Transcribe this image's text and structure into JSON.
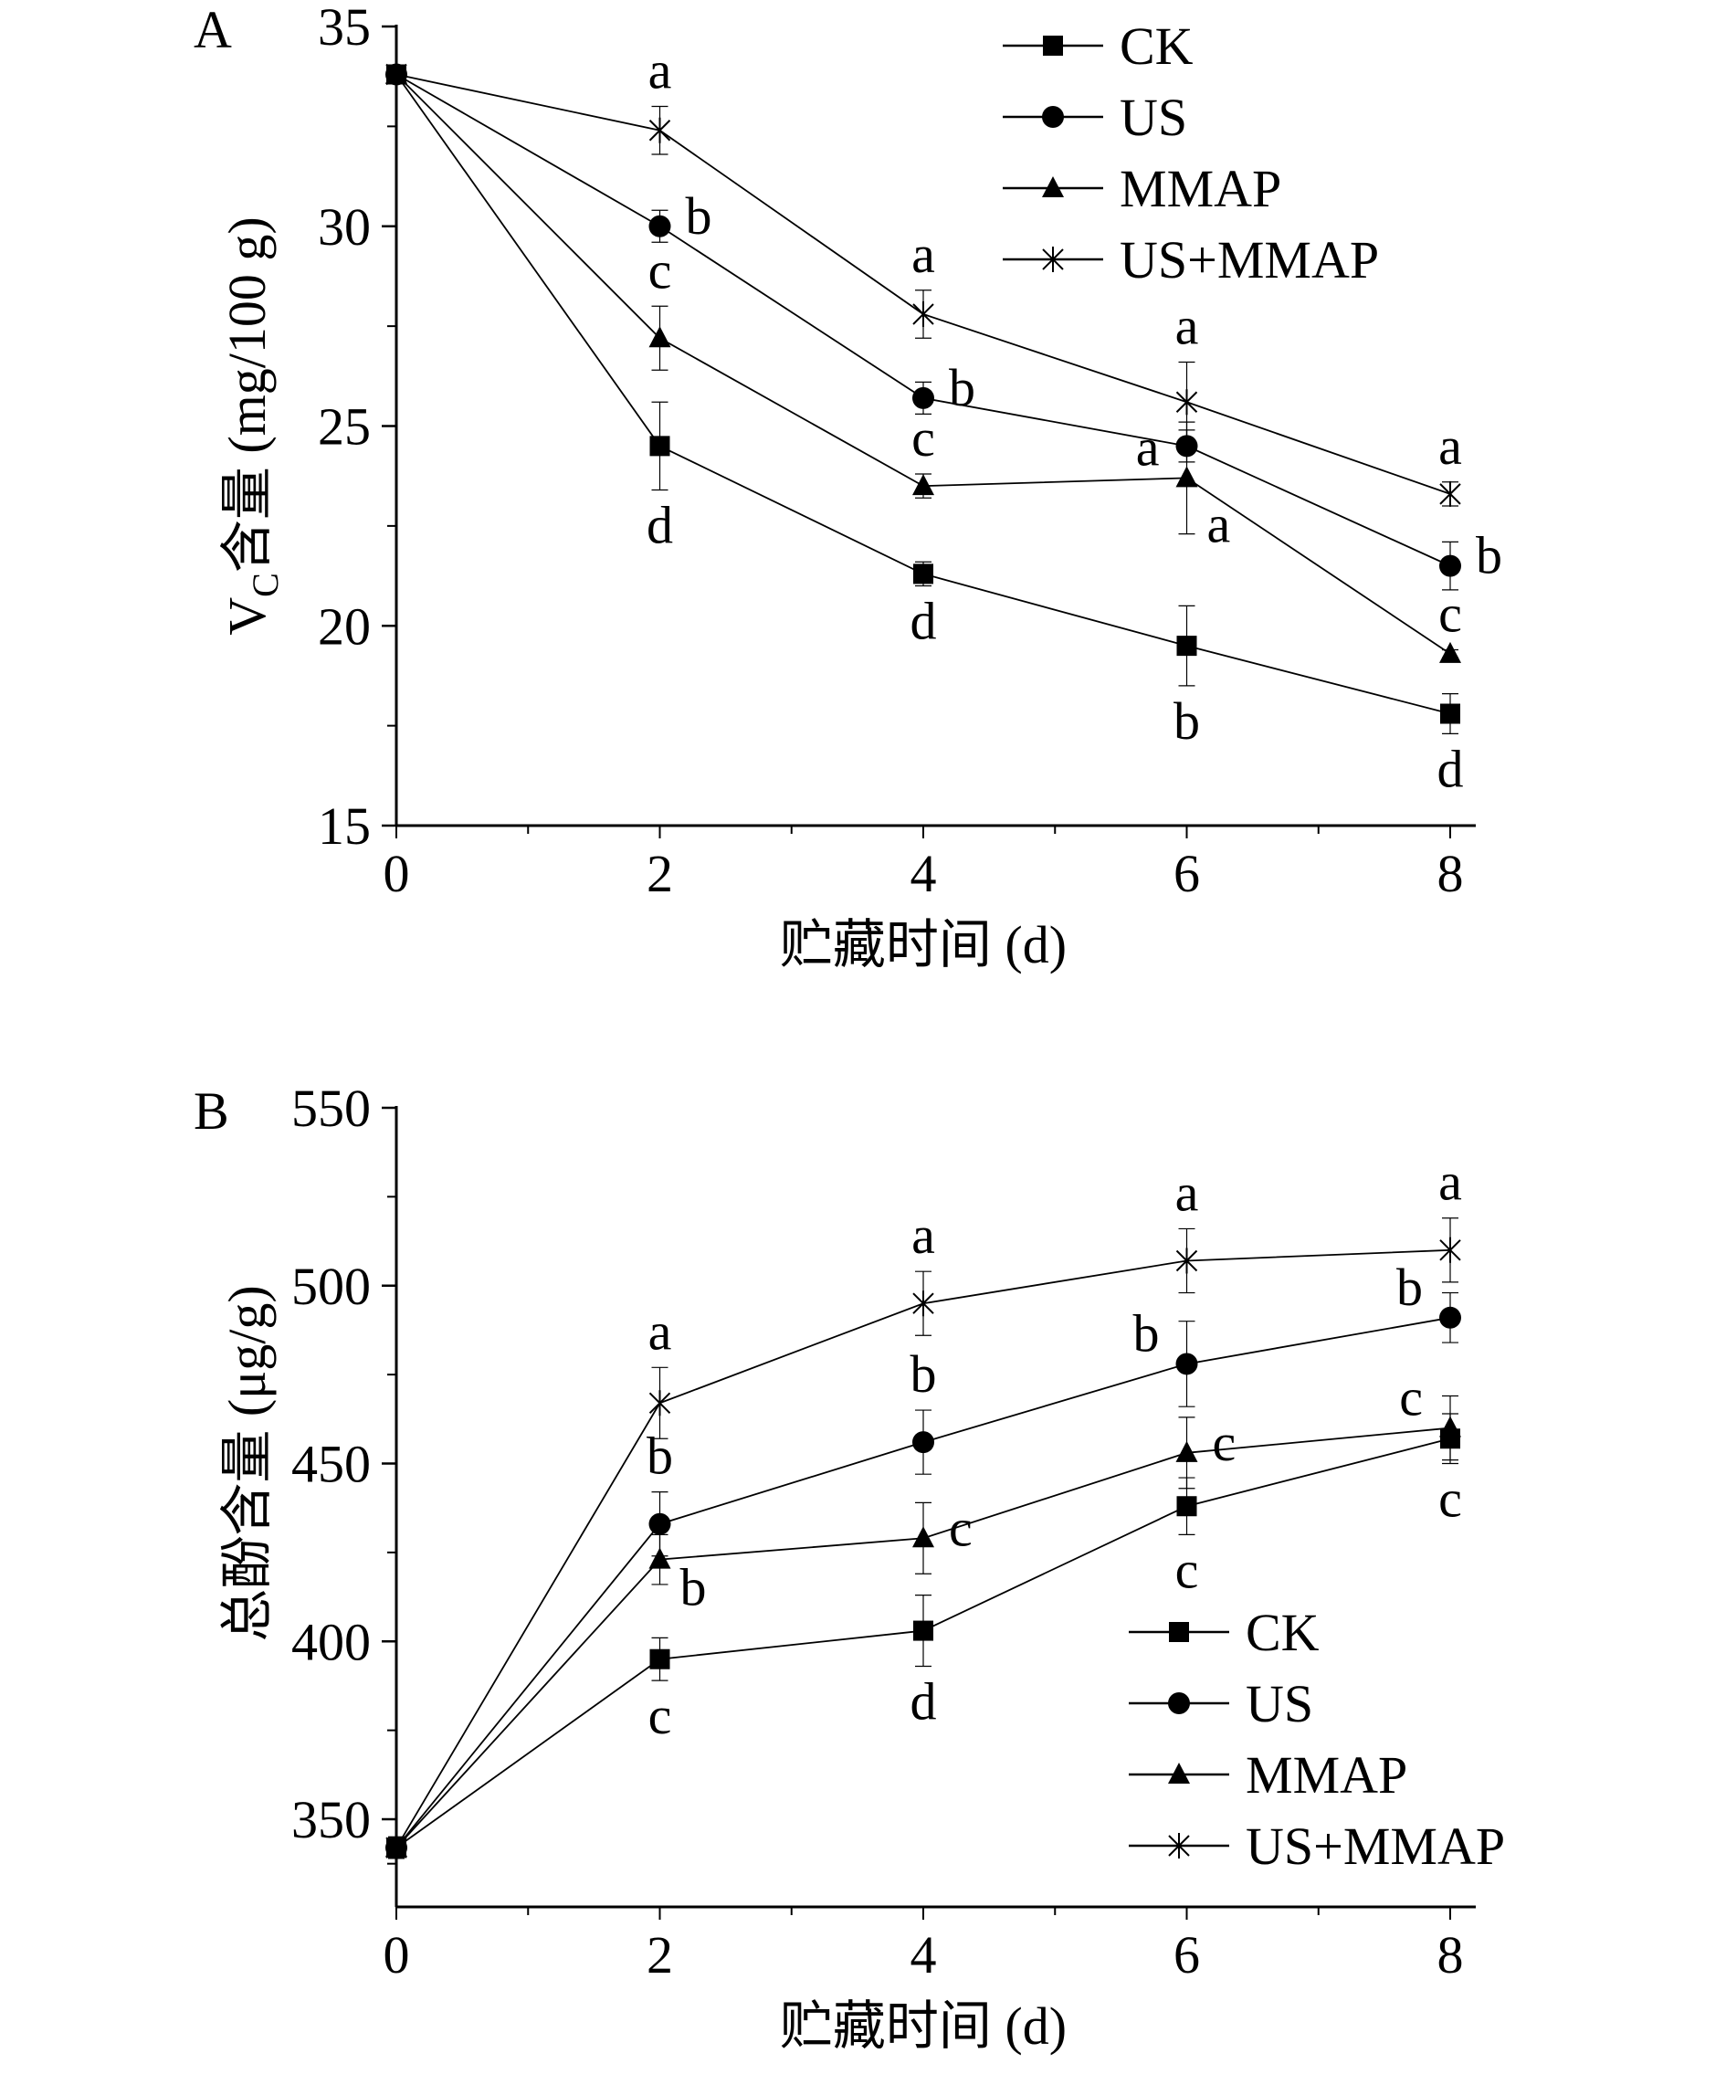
{
  "chart_data": [
    {
      "type": "line",
      "panel_label": "A",
      "title": "",
      "xlabel": "贮藏时间 (d)",
      "ylabel_main": "V",
      "ylabel_sub": "C",
      "ylabel_rest": "含量 (mg/100 g)",
      "x": [
        0,
        2,
        4,
        6,
        8
      ],
      "xticks": [
        "0",
        "2",
        "4",
        "6",
        "8"
      ],
      "xlim": [
        0,
        8
      ],
      "ylim": [
        15,
        35
      ],
      "yticks": [
        "15",
        "20",
        "25",
        "30",
        "35"
      ],
      "ytick_values": [
        15,
        20,
        25,
        30,
        35
      ],
      "legend_position": "top-right",
      "series": [
        {
          "name": "CK",
          "marker": "square",
          "values": [
            33.8,
            24.5,
            21.3,
            19.5,
            17.8
          ],
          "err": [
            0.2,
            1.1,
            0.3,
            1.0,
            0.5
          ],
          "letters": [
            "",
            "d",
            "d",
            "b",
            "d"
          ],
          "letter_pos": [
            "",
            "below",
            "below",
            "below",
            "below"
          ]
        },
        {
          "name": "US",
          "marker": "circle",
          "values": [
            33.8,
            30.0,
            25.7,
            24.5,
            21.5
          ],
          "err": [
            0.2,
            0.4,
            0.4,
            0.4,
            0.6
          ],
          "letters": [
            "",
            "b",
            "b",
            "",
            ""
          ],
          "letter_pos": [
            "",
            "right",
            "right",
            "",
            "right"
          ]
        },
        {
          "name": "MMAP",
          "marker": "triangle",
          "values": [
            33.8,
            27.2,
            23.5,
            23.7,
            19.3
          ],
          "err": [
            0.2,
            0.8,
            0.3,
            1.4,
            0.1
          ],
          "letters": [
            "",
            "c",
            "c",
            "a",
            "c"
          ],
          "letter_pos": [
            "",
            "above",
            "above",
            "left",
            "above"
          ]
        },
        {
          "name": "US+MMAP",
          "marker": "x",
          "values": [
            33.8,
            32.4,
            27.8,
            25.6,
            23.3
          ],
          "err": [
            0.2,
            0.6,
            0.6,
            1.0,
            0.3
          ],
          "letters": [
            "",
            "a",
            "a",
            "a",
            "a"
          ],
          "letter_pos": [
            "",
            "above",
            "above",
            "above",
            "above"
          ]
        }
      ],
      "extra_letters": [
        {
          "text": "a",
          "x": 6,
          "series": "MMAP",
          "pos": "below-right"
        },
        {
          "text": "b",
          "x": 8,
          "series": "US",
          "pos": "right"
        }
      ]
    },
    {
      "type": "line",
      "panel_label": "B",
      "title": "",
      "xlabel": "贮藏时间 (d)",
      "ylabel": "总酚含量 (μg/g)",
      "x": [
        0,
        2,
        4,
        6,
        8
      ],
      "xticks": [
        "0",
        "2",
        "4",
        "6",
        "8"
      ],
      "xlim": [
        0,
        8
      ],
      "ylim": [
        330,
        550
      ],
      "yticks": [
        "350",
        "400",
        "450",
        "500",
        "550"
      ],
      "ytick_values": [
        350,
        400,
        450,
        500,
        550
      ],
      "legend_position": "bottom-right",
      "series": [
        {
          "name": "CK",
          "marker": "square",
          "values": [
            342,
            395,
            403,
            438,
            457
          ],
          "err": [
            3,
            6,
            10,
            8,
            7
          ],
          "letters": [
            "",
            "c",
            "d",
            "c",
            "c"
          ],
          "letter_pos": [
            "",
            "below",
            "below",
            "below",
            "below"
          ]
        },
        {
          "name": "US",
          "marker": "circle",
          "values": [
            342,
            433,
            456,
            478,
            491
          ],
          "err": [
            3,
            9,
            9,
            12,
            7
          ],
          "letters": [
            "",
            "b",
            "b",
            "b",
            "b"
          ],
          "letter_pos": [
            "",
            "above",
            "above",
            "left",
            "left"
          ]
        },
        {
          "name": "MMAP",
          "marker": "triangle",
          "values": [
            342,
            423,
            429,
            453,
            460
          ],
          "err": [
            3,
            7,
            10,
            10,
            9
          ],
          "letters": [
            "",
            "b",
            "c",
            "c",
            "c"
          ],
          "letter_pos": [
            "",
            "below-right",
            "right",
            "right",
            "left"
          ]
        },
        {
          "name": "US+MMAP",
          "marker": "x",
          "values": [
            342,
            467,
            495,
            507,
            510
          ],
          "err": [
            3,
            10,
            9,
            9,
            9
          ],
          "letters": [
            "",
            "a",
            "a",
            "a",
            "a"
          ],
          "letter_pos": [
            "",
            "above",
            "above",
            "above",
            "above"
          ]
        }
      ]
    }
  ]
}
